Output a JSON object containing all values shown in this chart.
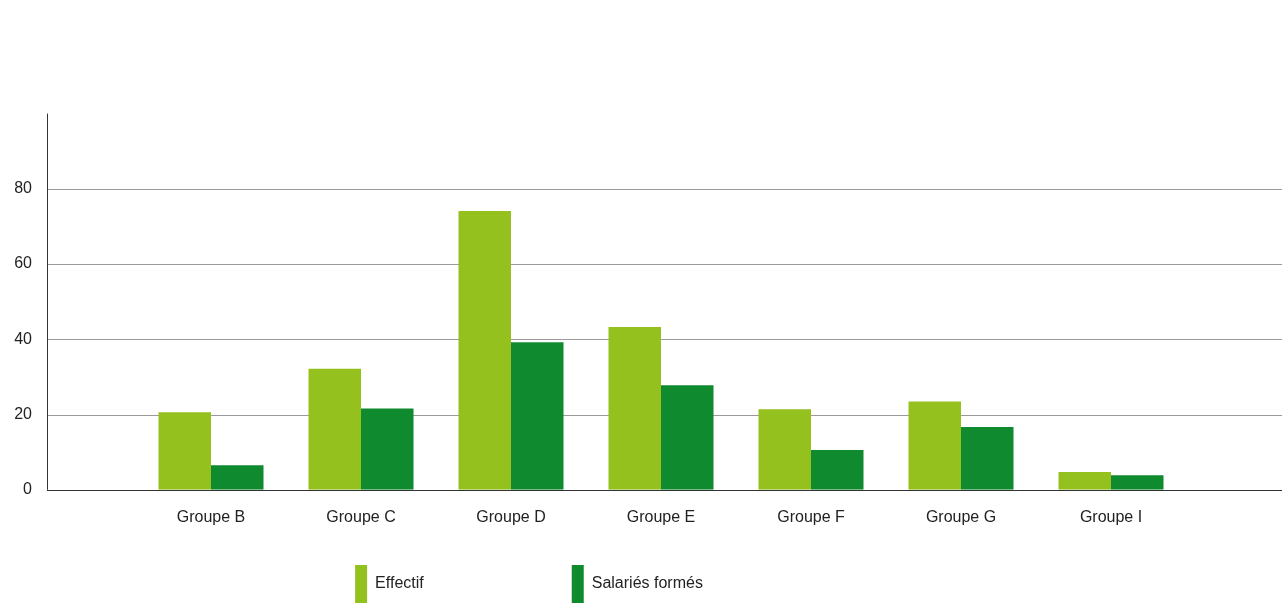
{
  "chart_data": {
    "type": "bar",
    "categories": [
      "Groupe B",
      "Groupe C",
      "Groupe D",
      "Groupe E",
      "Groupe F",
      "Groupe G",
      "Groupe I"
    ],
    "series": [
      {
        "name": "Effectif",
        "color": "#95c11f",
        "values": [
          20.6,
          32.2,
          74.1,
          43.3,
          21.4,
          23.5,
          4.7
        ]
      },
      {
        "name": "Salariés formés",
        "color": "#0f8a2e",
        "values": [
          6.5,
          21.6,
          39.2,
          27.8,
          10.6,
          16.7,
          3.9
        ]
      }
    ],
    "ylim": [
      0,
      100
    ],
    "yticks": [
      0,
      20,
      40,
      60,
      80
    ],
    "grid": "y",
    "legend": "bottom"
  }
}
